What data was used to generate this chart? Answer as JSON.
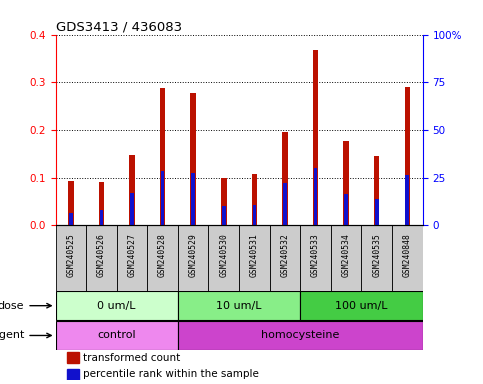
{
  "title": "GDS3413 / 436083",
  "samples": [
    "GSM240525",
    "GSM240526",
    "GSM240527",
    "GSM240528",
    "GSM240529",
    "GSM240530",
    "GSM240531",
    "GSM240532",
    "GSM240533",
    "GSM240534",
    "GSM240535",
    "GSM240848"
  ],
  "transformed_count": [
    0.093,
    0.09,
    0.148,
    0.288,
    0.277,
    0.1,
    0.108,
    0.196,
    0.368,
    0.176,
    0.146,
    0.29
  ],
  "percentile_rank": [
    0.025,
    0.033,
    0.067,
    0.113,
    0.11,
    0.04,
    0.043,
    0.088,
    0.12,
    0.065,
    0.055,
    0.105
  ],
  "bar_color": "#bb1100",
  "pct_color": "#1111cc",
  "ylim_left": [
    0,
    0.4
  ],
  "ylim_right": [
    0,
    100
  ],
  "yticks_left": [
    0.0,
    0.1,
    0.2,
    0.3,
    0.4
  ],
  "yticks_right": [
    0,
    25,
    50,
    75,
    100
  ],
  "ytick_labels_right": [
    "0",
    "25",
    "50",
    "75",
    "100%"
  ],
  "dose_groups": [
    {
      "label": "0 um/L",
      "start": 0,
      "end": 4,
      "color": "#ccffcc"
    },
    {
      "label": "10 um/L",
      "start": 4,
      "end": 8,
      "color": "#88ee88"
    },
    {
      "label": "100 um/L",
      "start": 8,
      "end": 12,
      "color": "#44cc44"
    }
  ],
  "agent_groups": [
    {
      "label": "control",
      "start": 0,
      "end": 4,
      "color": "#ee88ee"
    },
    {
      "label": "homocysteine",
      "start": 4,
      "end": 12,
      "color": "#cc44cc"
    }
  ],
  "dose_label": "dose",
  "agent_label": "agent",
  "legend_items": [
    {
      "label": "transformed count",
      "color": "#bb1100"
    },
    {
      "label": "percentile rank within the sample",
      "color": "#1111cc"
    }
  ],
  "tick_bg_color": "#cccccc",
  "bar_width": 0.18,
  "pct_bar_width": 0.12
}
